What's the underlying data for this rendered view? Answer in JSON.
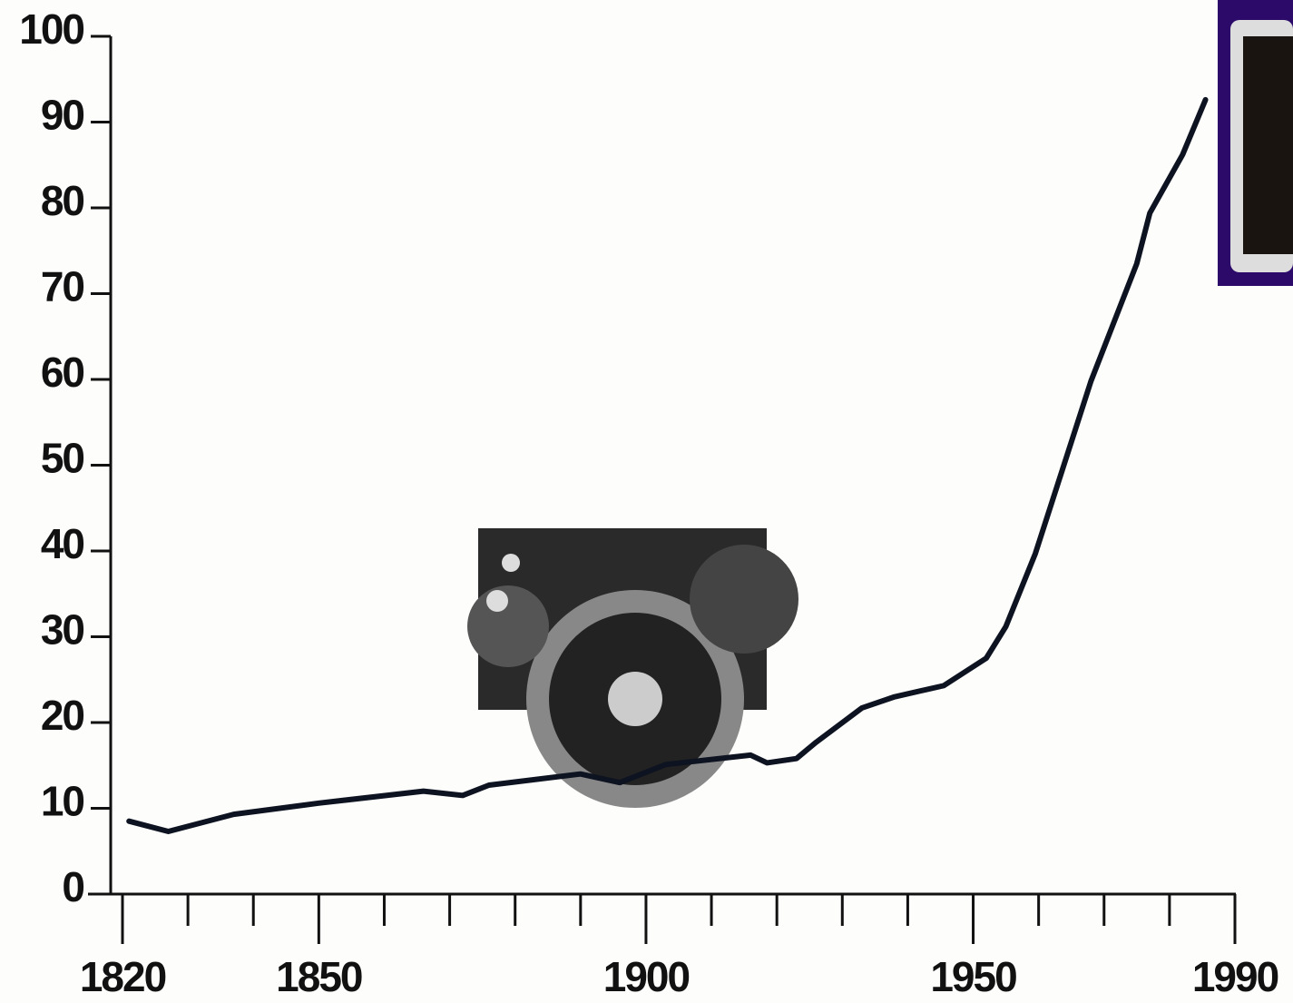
{
  "chart_data": {
    "type": "line",
    "x": [
      1821,
      1827,
      1837,
      1850,
      1866,
      1872,
      1876,
      1890,
      1896,
      1903,
      1916,
      1918.5,
      1923,
      1926,
      1933,
      1938,
      1945.5,
      1952,
      1955,
      1959.5,
      1968,
      1975,
      1977,
      1982,
      1985.5
    ],
    "series": [
      {
        "color": "#0d1320",
        "values": [
          8.5,
          7.3,
          9.3,
          10.6,
          12.0,
          11.5,
          12.7,
          14.0,
          13.0,
          15.1,
          16.2,
          15.3,
          15.8,
          17.7,
          21.7,
          23.0,
          24.3,
          27.5,
          31.2,
          39.7,
          59.8,
          73.5,
          79.4,
          86.2,
          92.6
        ]
      }
    ],
    "xlim": [
      1820,
      1990
    ],
    "xticks": [
      1820,
      1850,
      1900,
      1950,
      1990
    ],
    "xminorticks": [
      1830,
      1840,
      1860,
      1870,
      1880,
      1890,
      1910,
      1920,
      1930,
      1940,
      1960,
      1970,
      1980
    ],
    "ylim": [
      0,
      100
    ],
    "yticks": [
      0,
      10,
      20,
      30,
      40,
      50,
      60,
      70,
      80,
      90,
      100
    ]
  }
}
